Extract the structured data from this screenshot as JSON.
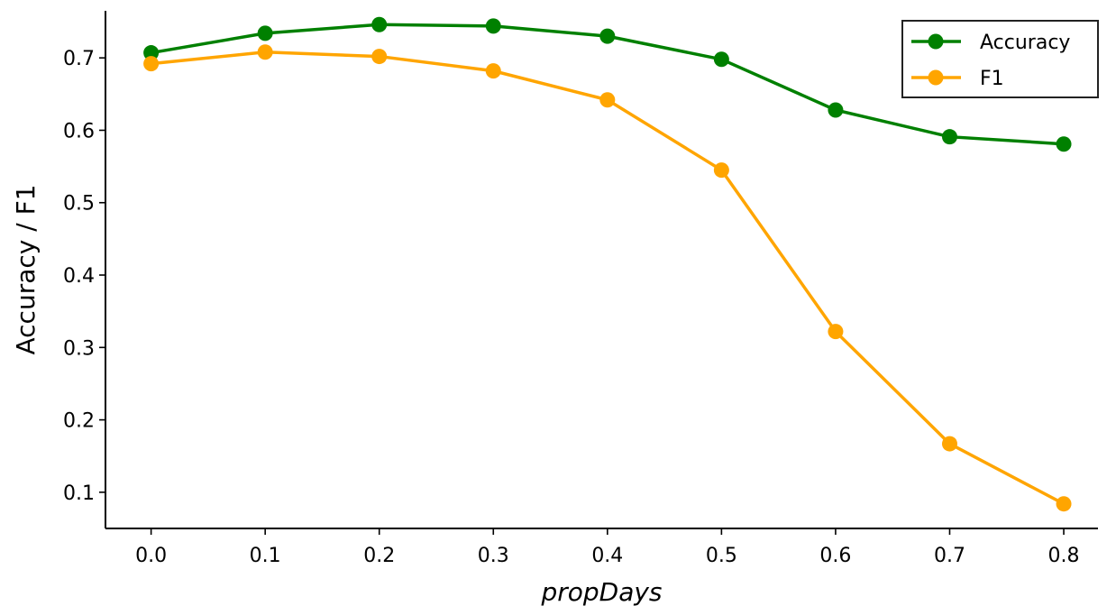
{
  "chart_data": {
    "type": "line",
    "x": [
      0.0,
      0.1,
      0.2,
      0.3,
      0.4,
      0.5,
      0.6,
      0.7,
      0.8
    ],
    "series": [
      {
        "name": "Accuracy",
        "color": "#008000",
        "values": [
          0.707,
          0.734,
          0.746,
          0.744,
          0.73,
          0.698,
          0.628,
          0.591,
          0.581
        ]
      },
      {
        "name": "F1",
        "color": "#FFA500",
        "values": [
          0.692,
          0.708,
          0.702,
          0.682,
          0.642,
          0.545,
          0.322,
          0.167,
          0.084
        ]
      }
    ],
    "xlabel": "propDays",
    "ylabel": "Accuracy / F1",
    "xticks": [
      0.0,
      0.1,
      0.2,
      0.3,
      0.4,
      0.5,
      0.6,
      0.7,
      0.8
    ],
    "xtick_labels": [
      "0.0",
      "0.1",
      "0.2",
      "0.3",
      "0.4",
      "0.5",
      "0.6",
      "0.7",
      "0.8"
    ],
    "yticks": [
      0.1,
      0.2,
      0.3,
      0.4,
      0.5,
      0.6,
      0.7
    ],
    "ytick_labels": [
      "0.1",
      "0.2",
      "0.3",
      "0.4",
      "0.5",
      "0.6",
      "0.7"
    ],
    "xlim": [
      -0.04,
      0.83
    ],
    "ylim": [
      0.05,
      0.765
    ],
    "grid": false,
    "legend_position": "top-right",
    "spines": "left-bottom"
  }
}
